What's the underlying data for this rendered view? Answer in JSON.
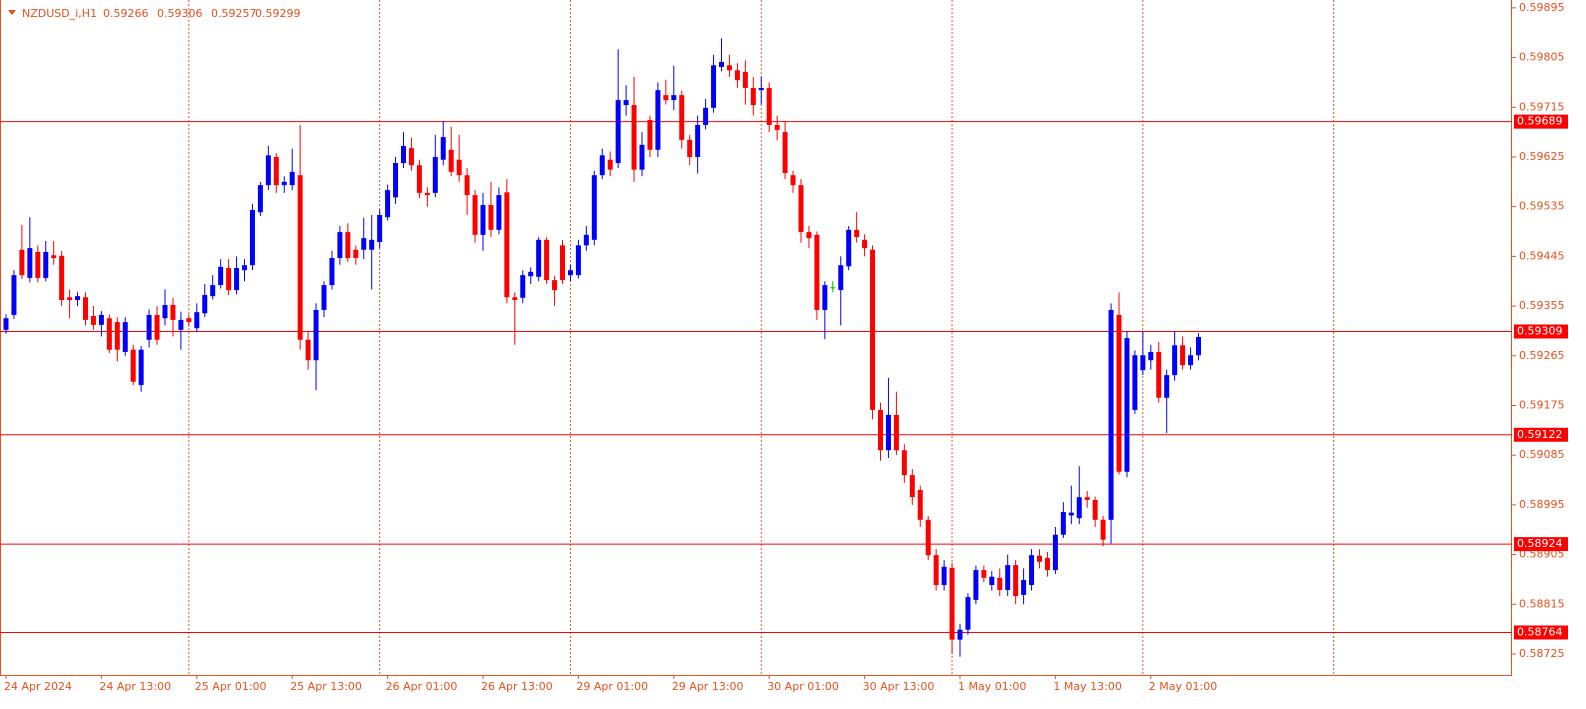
{
  "chart_data": {
    "type": "candlestick",
    "symbol": "NZDUSD_i,H1",
    "bull_color": "#0000ff",
    "bear_color": "#ff0000",
    "doji_color": "#00b000",
    "axis_color": "#e8501e",
    "level_color": "#ff0000",
    "ylim": [
      0.58687,
      0.59902
    ],
    "yticks": [
      0.59895,
      0.59805,
      0.59715,
      0.59625,
      0.59535,
      0.59445,
      0.59355,
      0.59265,
      0.59175,
      0.59085,
      0.58995,
      0.58905,
      0.58815,
      0.58725
    ],
    "levels": [
      0.59689,
      0.59309,
      0.59122,
      0.58924,
      0.58764
    ],
    "time_labels": [
      "24 Apr 2024",
      "24 Apr 13:00",
      "25 Apr 01:00",
      "25 Apr 13:00",
      "26 Apr 01:00",
      "26 Apr 13:00",
      "29 Apr 01:00",
      "29 Apr 13:00",
      "30 Apr 01:00",
      "30 Apr 13:00",
      "1 May 01:00",
      "1 May 13:00",
      "2 May 01:00"
    ],
    "candles": [
      [
        0.59312,
        0.5934,
        0.59305,
        0.59333
      ],
      [
        0.59339,
        0.5942,
        0.59332,
        0.59411
      ],
      [
        0.59457,
        0.59502,
        0.59404,
        0.59411
      ],
      [
        0.59406,
        0.59516,
        0.59398,
        0.5946
      ],
      [
        0.59453,
        0.59465,
        0.59398,
        0.59406
      ],
      [
        0.59406,
        0.59473,
        0.594,
        0.59453
      ],
      [
        0.59447,
        0.59473,
        0.5943,
        0.59442
      ],
      [
        0.59446,
        0.59455,
        0.59355,
        0.59366
      ],
      [
        0.59371,
        0.59385,
        0.59333,
        0.59366
      ],
      [
        0.59366,
        0.5938,
        0.59355,
        0.59373
      ],
      [
        0.59371,
        0.5938,
        0.5932,
        0.5933
      ],
      [
        0.59337,
        0.59355,
        0.59312,
        0.59321
      ],
      [
        0.59321,
        0.59346,
        0.593,
        0.59339
      ],
      [
        0.59333,
        0.5934,
        0.5927,
        0.59276
      ],
      [
        0.59326,
        0.59335,
        0.59255,
        0.59276
      ],
      [
        0.59272,
        0.59335,
        0.59265,
        0.59326
      ],
      [
        0.59276,
        0.59285,
        0.59212,
        0.59218
      ],
      [
        0.59212,
        0.59283,
        0.592,
        0.59276
      ],
      [
        0.59294,
        0.59349,
        0.5928,
        0.59339
      ],
      [
        0.59339,
        0.59355,
        0.59285,
        0.59294
      ],
      [
        0.59333,
        0.59385,
        0.5932,
        0.59357
      ],
      [
        0.59357,
        0.5937,
        0.593,
        0.5933
      ],
      [
        0.59312,
        0.59345,
        0.59276,
        0.5933
      ],
      [
        0.59333,
        0.5934,
        0.59318,
        0.59326
      ],
      [
        0.59315,
        0.5936,
        0.59308,
        0.59344
      ],
      [
        0.59342,
        0.59395,
        0.59335,
        0.59375
      ],
      [
        0.59373,
        0.59411,
        0.59367,
        0.59393
      ],
      [
        0.59393,
        0.5944,
        0.59387,
        0.59426
      ],
      [
        0.59424,
        0.5944,
        0.59375,
        0.59384
      ],
      [
        0.59384,
        0.59445,
        0.59376,
        0.59424
      ],
      [
        0.5942,
        0.5944,
        0.594,
        0.59429
      ],
      [
        0.59429,
        0.5954,
        0.5942,
        0.59529
      ],
      [
        0.59525,
        0.5958,
        0.59518,
        0.59574
      ],
      [
        0.59574,
        0.59645,
        0.59565,
        0.59628
      ],
      [
        0.59625,
        0.59632,
        0.5956,
        0.59574
      ],
      [
        0.59574,
        0.5959,
        0.5956,
        0.5958
      ],
      [
        0.59574,
        0.5964,
        0.59565,
        0.59598
      ],
      [
        0.59592,
        0.59683,
        0.59276,
        0.59294
      ],
      [
        0.59294,
        0.5931,
        0.5924,
        0.59257
      ],
      [
        0.59257,
        0.5936,
        0.59203,
        0.59348
      ],
      [
        0.59348,
        0.594,
        0.59335,
        0.59393
      ],
      [
        0.59393,
        0.59455,
        0.59385,
        0.59442
      ],
      [
        0.59442,
        0.595,
        0.5943,
        0.59489
      ],
      [
        0.59489,
        0.59505,
        0.59435,
        0.59442
      ],
      [
        0.59457,
        0.59465,
        0.5943,
        0.59442
      ],
      [
        0.59457,
        0.59515,
        0.5944,
        0.59478
      ],
      [
        0.59457,
        0.5952,
        0.59385,
        0.59475
      ],
      [
        0.59471,
        0.5953,
        0.5946,
        0.5952
      ],
      [
        0.59516,
        0.59575,
        0.5951,
        0.59565
      ],
      [
        0.59552,
        0.59625,
        0.5954,
        0.59614
      ],
      [
        0.59614,
        0.5967,
        0.59605,
        0.59645
      ],
      [
        0.59641,
        0.5966,
        0.596,
        0.5961
      ],
      [
        0.5961,
        0.5962,
        0.5955,
        0.5956
      ],
      [
        0.5956,
        0.5957,
        0.59535,
        0.59556
      ],
      [
        0.5956,
        0.59665,
        0.59552,
        0.59625
      ],
      [
        0.5962,
        0.5969,
        0.5961,
        0.59661
      ],
      [
        0.59638,
        0.5968,
        0.5959,
        0.59598
      ],
      [
        0.5962,
        0.59665,
        0.5958,
        0.59592
      ],
      [
        0.59592,
        0.59605,
        0.5952,
        0.59556
      ],
      [
        0.59556,
        0.59565,
        0.5947,
        0.59484
      ],
      [
        0.59484,
        0.5956,
        0.59455,
        0.59538
      ],
      [
        0.59538,
        0.5958,
        0.5948,
        0.59493
      ],
      [
        0.59493,
        0.5957,
        0.59485,
        0.59556
      ],
      [
        0.59561,
        0.59585,
        0.5936,
        0.59371
      ],
      [
        0.59371,
        0.5938,
        0.59285,
        0.59366
      ],
      [
        0.5937,
        0.5942,
        0.5936,
        0.59411
      ],
      [
        0.59409,
        0.59425,
        0.59395,
        0.59417
      ],
      [
        0.59408,
        0.5948,
        0.594,
        0.59475
      ],
      [
        0.59475,
        0.5948,
        0.59395,
        0.59402
      ],
      [
        0.59402,
        0.5941,
        0.59355,
        0.59384
      ],
      [
        0.59465,
        0.59475,
        0.59395,
        0.59402
      ],
      [
        0.59411,
        0.5943,
        0.594,
        0.5942
      ],
      [
        0.59411,
        0.59475,
        0.59405,
        0.59465
      ],
      [
        0.59465,
        0.595,
        0.59455,
        0.59484
      ],
      [
        0.59475,
        0.596,
        0.59465,
        0.59592
      ],
      [
        0.59592,
        0.5964,
        0.59585,
        0.59628
      ],
      [
        0.5962,
        0.59635,
        0.5959,
        0.59602
      ],
      [
        0.59614,
        0.5982,
        0.59605,
        0.59728
      ],
      [
        0.59719,
        0.59755,
        0.597,
        0.59728
      ],
      [
        0.59719,
        0.5977,
        0.5958,
        0.59602
      ],
      [
        0.59602,
        0.5967,
        0.5959,
        0.59647
      ],
      [
        0.59692,
        0.597,
        0.59625,
        0.59638
      ],
      [
        0.59638,
        0.5976,
        0.59625,
        0.59746
      ],
      [
        0.59737,
        0.59765,
        0.5972,
        0.59728
      ],
      [
        0.59728,
        0.5979,
        0.5971,
        0.59737
      ],
      [
        0.59737,
        0.59745,
        0.5964,
        0.59656
      ],
      [
        0.59656,
        0.59665,
        0.5961,
        0.59625
      ],
      [
        0.59625,
        0.597,
        0.59595,
        0.59683
      ],
      [
        0.59683,
        0.5973,
        0.59675,
        0.59714
      ],
      [
        0.59714,
        0.5981,
        0.59705,
        0.59791
      ],
      [
        0.59788,
        0.5984,
        0.5978,
        0.59797
      ],
      [
        0.59791,
        0.5981,
        0.5977,
        0.59782
      ],
      [
        0.59782,
        0.59795,
        0.5975,
        0.59764
      ],
      [
        0.59779,
        0.598,
        0.5972,
        0.5975
      ],
      [
        0.5975,
        0.5977,
        0.597,
        0.59719
      ],
      [
        0.59746,
        0.5977,
        0.5972,
        0.5975
      ],
      [
        0.5975,
        0.5976,
        0.5967,
        0.59683
      ],
      [
        0.59683,
        0.597,
        0.59655,
        0.59674
      ],
      [
        0.5967,
        0.5969,
        0.59585,
        0.59596
      ],
      [
        0.59592,
        0.596,
        0.5956,
        0.59574
      ],
      [
        0.59574,
        0.59585,
        0.5947,
        0.59489
      ],
      [
        0.59489,
        0.595,
        0.5946,
        0.59478
      ],
      [
        0.59484,
        0.5949,
        0.5933,
        0.59348
      ],
      [
        0.59348,
        0.594,
        0.59295,
        0.59393
      ],
      [
        0.59389,
        0.594,
        0.5938,
        0.59389
      ],
      [
        0.59384,
        0.59445,
        0.5932,
        0.59429
      ],
      [
        0.59427,
        0.595,
        0.5942,
        0.59493
      ],
      [
        0.59493,
        0.59525,
        0.5947,
        0.5948
      ],
      [
        0.59475,
        0.59485,
        0.59445,
        0.5946
      ],
      [
        0.59457,
        0.59465,
        0.5915,
        0.59167
      ],
      [
        0.59167,
        0.5918,
        0.59075,
        0.59094
      ],
      [
        0.59094,
        0.59225,
        0.5908,
        0.59158
      ],
      [
        0.59158,
        0.592,
        0.59085,
        0.59094
      ],
      [
        0.59094,
        0.59105,
        0.59035,
        0.59049
      ],
      [
        0.59049,
        0.5906,
        0.58995,
        0.59009
      ],
      [
        0.59022,
        0.5903,
        0.58955,
        0.58968
      ],
      [
        0.58968,
        0.58975,
        0.58895,
        0.58904
      ],
      [
        0.58904,
        0.58915,
        0.5884,
        0.5885
      ],
      [
        0.5885,
        0.58895,
        0.5884,
        0.58883
      ],
      [
        0.58881,
        0.5889,
        0.58725,
        0.58751
      ],
      [
        0.58751,
        0.5878,
        0.5872,
        0.58769
      ],
      [
        0.58769,
        0.58835,
        0.5876,
        0.58828
      ],
      [
        0.58823,
        0.58885,
        0.58815,
        0.58877
      ],
      [
        0.58877,
        0.58885,
        0.58855,
        0.58863
      ],
      [
        0.5885,
        0.58875,
        0.5884,
        0.58865
      ],
      [
        0.58863,
        0.5888,
        0.5883,
        0.58841
      ],
      [
        0.58841,
        0.58905,
        0.5883,
        0.58886
      ],
      [
        0.58886,
        0.58895,
        0.58815,
        0.5883
      ],
      [
        0.58832,
        0.5888,
        0.58815,
        0.58859
      ],
      [
        0.5885,
        0.58915,
        0.5884,
        0.58904
      ],
      [
        0.58903,
        0.58915,
        0.5888,
        0.58892
      ],
      [
        0.58899,
        0.5891,
        0.58865,
        0.58877
      ],
      [
        0.58877,
        0.58955,
        0.5887,
        0.58941
      ],
      [
        0.58941,
        0.59,
        0.58935,
        0.58982
      ],
      [
        0.58976,
        0.5903,
        0.5896,
        0.58981
      ],
      [
        0.58971,
        0.59065,
        0.5896,
        0.59009
      ],
      [
        0.59009,
        0.5902,
        0.5899,
        0.59004
      ],
      [
        0.59004,
        0.5901,
        0.58955,
        0.58968
      ],
      [
        0.58968,
        0.58975,
        0.5892,
        0.58932
      ],
      [
        0.58968,
        0.5936,
        0.58925,
        0.59348
      ],
      [
        0.59339,
        0.5938,
        0.5905,
        0.59055
      ],
      [
        0.59055,
        0.5931,
        0.59045,
        0.59297
      ],
      [
        0.59167,
        0.59275,
        0.5916,
        0.59266
      ],
      [
        0.59239,
        0.5931,
        0.5923,
        0.59266
      ],
      [
        0.59257,
        0.59285,
        0.5924,
        0.59272
      ],
      [
        0.59272,
        0.5929,
        0.5918,
        0.59189
      ],
      [
        0.59189,
        0.5924,
        0.59125,
        0.5923
      ],
      [
        0.5923,
        0.5931,
        0.5922,
        0.59284
      ],
      [
        0.59284,
        0.593,
        0.5924,
        0.59248
      ],
      [
        0.59248,
        0.5928,
        0.5924,
        0.59266
      ],
      [
        0.59266,
        0.59306,
        0.59257,
        0.59299
      ]
    ]
  }
}
